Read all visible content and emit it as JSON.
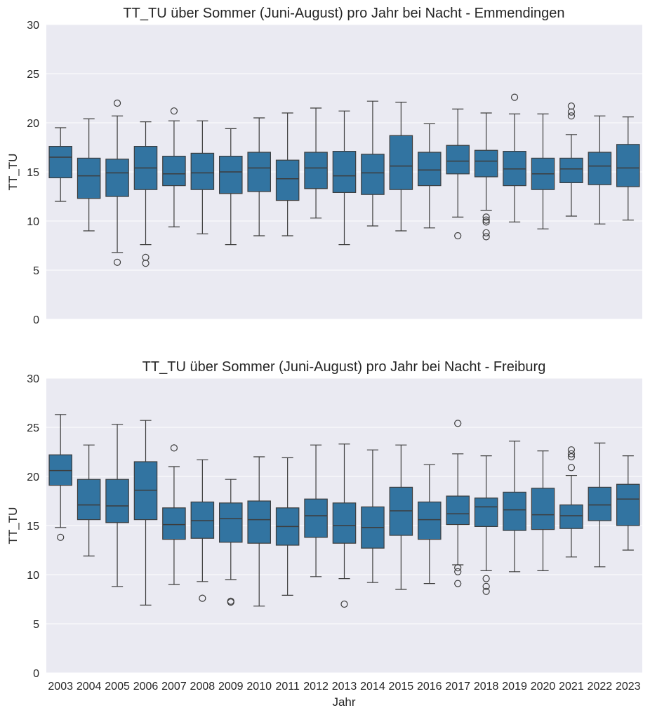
{
  "colors": {
    "panel_bg": "#eaeaf2",
    "grid": "#ffffff",
    "box_fill": "#3274a1",
    "line": "#3d3d3d"
  },
  "chart_data": [
    {
      "type": "box",
      "title": "TT_TU über Sommer  (Juni-August) pro Jahr bei Nacht - Emmendingen",
      "ylabel": "TT_TU",
      "xlabel": "",
      "ylim": [
        0,
        30
      ],
      "yticks": [
        0,
        5,
        10,
        15,
        20,
        25,
        30
      ],
      "grid": true,
      "categories": [
        "2003",
        "2004",
        "2005",
        "2006",
        "2007",
        "2008",
        "2009",
        "2010",
        "2011",
        "2012",
        "2013",
        "2014",
        "2015",
        "2016",
        "2017",
        "2018",
        "2019",
        "2020",
        "2021",
        "2022",
        "2023"
      ],
      "boxes": [
        {
          "year": "2003",
          "whisker_low": 12.0,
          "q1": 14.4,
          "median": 16.5,
          "q3": 17.6,
          "whisker_high": 19.5,
          "outliers": []
        },
        {
          "year": "2004",
          "whisker_low": 9.0,
          "q1": 12.3,
          "median": 14.6,
          "q3": 16.4,
          "whisker_high": 20.4,
          "outliers": []
        },
        {
          "year": "2005",
          "whisker_low": 6.8,
          "q1": 12.5,
          "median": 14.9,
          "q3": 16.3,
          "whisker_high": 20.7,
          "outliers": [
            5.8,
            22.0
          ]
        },
        {
          "year": "2006",
          "whisker_low": 7.6,
          "q1": 13.2,
          "median": 15.4,
          "q3": 17.6,
          "whisker_high": 20.1,
          "outliers": [
            6.3,
            5.7
          ]
        },
        {
          "year": "2007",
          "whisker_low": 9.4,
          "q1": 13.6,
          "median": 14.8,
          "q3": 16.6,
          "whisker_high": 20.2,
          "outliers": [
            21.2
          ]
        },
        {
          "year": "2008",
          "whisker_low": 8.7,
          "q1": 13.2,
          "median": 14.9,
          "q3": 16.9,
          "whisker_high": 20.2,
          "outliers": []
        },
        {
          "year": "2009",
          "whisker_low": 7.6,
          "q1": 12.8,
          "median": 15.0,
          "q3": 16.6,
          "whisker_high": 19.4,
          "outliers": []
        },
        {
          "year": "2010",
          "whisker_low": 8.5,
          "q1": 13.0,
          "median": 15.4,
          "q3": 17.0,
          "whisker_high": 20.5,
          "outliers": []
        },
        {
          "year": "2011",
          "whisker_low": 8.5,
          "q1": 12.1,
          "median": 14.3,
          "q3": 16.2,
          "whisker_high": 21.0,
          "outliers": []
        },
        {
          "year": "2012",
          "whisker_low": 10.3,
          "q1": 13.3,
          "median": 15.4,
          "q3": 17.0,
          "whisker_high": 21.5,
          "outliers": []
        },
        {
          "year": "2013",
          "whisker_low": 7.6,
          "q1": 12.9,
          "median": 14.6,
          "q3": 17.1,
          "whisker_high": 21.2,
          "outliers": []
        },
        {
          "year": "2014",
          "whisker_low": 9.5,
          "q1": 12.7,
          "median": 14.9,
          "q3": 16.8,
          "whisker_high": 22.2,
          "outliers": []
        },
        {
          "year": "2015",
          "whisker_low": 9.0,
          "q1": 13.2,
          "median": 15.6,
          "q3": 18.7,
          "whisker_high": 22.1,
          "outliers": []
        },
        {
          "year": "2016",
          "whisker_low": 9.3,
          "q1": 13.6,
          "median": 15.2,
          "q3": 17.0,
          "whisker_high": 19.9,
          "outliers": []
        },
        {
          "year": "2017",
          "whisker_low": 10.4,
          "q1": 14.8,
          "median": 16.1,
          "q3": 17.7,
          "whisker_high": 21.4,
          "outliers": [
            8.5
          ]
        },
        {
          "year": "2018",
          "whisker_low": 11.1,
          "q1": 14.5,
          "median": 16.1,
          "q3": 17.2,
          "whisker_high": 21.0,
          "outliers": [
            10.4,
            10.1,
            9.9,
            8.8,
            8.4
          ]
        },
        {
          "year": "2019",
          "whisker_low": 9.9,
          "q1": 13.6,
          "median": 15.3,
          "q3": 17.1,
          "whisker_high": 20.9,
          "outliers": [
            22.6
          ]
        },
        {
          "year": "2020",
          "whisker_low": 9.2,
          "q1": 13.2,
          "median": 14.8,
          "q3": 16.4,
          "whisker_high": 20.9,
          "outliers": []
        },
        {
          "year": "2021",
          "whisker_low": 10.5,
          "q1": 13.9,
          "median": 15.3,
          "q3": 16.4,
          "whisker_high": 18.8,
          "outliers": [
            21.7,
            21.1,
            20.7
          ]
        },
        {
          "year": "2022",
          "whisker_low": 9.7,
          "q1": 13.7,
          "median": 15.6,
          "q3": 17.0,
          "whisker_high": 20.7,
          "outliers": []
        },
        {
          "year": "2023",
          "whisker_low": 10.1,
          "q1": 13.5,
          "median": 15.4,
          "q3": 17.8,
          "whisker_high": 20.6,
          "outliers": []
        }
      ]
    },
    {
      "type": "box",
      "title": "TT_TU über Sommer (Juni-August) pro Jahr bei Nacht - Freiburg",
      "ylabel": "TT_TU",
      "xlabel": "Jahr",
      "ylim": [
        0,
        30
      ],
      "yticks": [
        0,
        5,
        10,
        15,
        20,
        25,
        30
      ],
      "grid": true,
      "categories": [
        "2003",
        "2004",
        "2005",
        "2006",
        "2007",
        "2008",
        "2009",
        "2010",
        "2011",
        "2012",
        "2013",
        "2014",
        "2015",
        "2016",
        "2017",
        "2018",
        "2019",
        "2020",
        "2021",
        "2022",
        "2023"
      ],
      "boxes": [
        {
          "year": "2003",
          "whisker_low": 14.8,
          "q1": 19.1,
          "median": 20.6,
          "q3": 22.2,
          "whisker_high": 26.3,
          "outliers": [
            13.8
          ]
        },
        {
          "year": "2004",
          "whisker_low": 11.9,
          "q1": 15.6,
          "median": 17.1,
          "q3": 19.7,
          "whisker_high": 23.2,
          "outliers": []
        },
        {
          "year": "2005",
          "whisker_low": 8.8,
          "q1": 15.3,
          "median": 17.0,
          "q3": 19.7,
          "whisker_high": 25.3,
          "outliers": []
        },
        {
          "year": "2006",
          "whisker_low": 6.9,
          "q1": 15.6,
          "median": 18.6,
          "q3": 21.5,
          "whisker_high": 25.7,
          "outliers": []
        },
        {
          "year": "2007",
          "whisker_low": 9.0,
          "q1": 13.6,
          "median": 15.1,
          "q3": 16.8,
          "whisker_high": 21.0,
          "outliers": [
            22.9
          ]
        },
        {
          "year": "2008",
          "whisker_low": 9.3,
          "q1": 13.7,
          "median": 15.5,
          "q3": 17.4,
          "whisker_high": 21.7,
          "outliers": [
            7.6
          ]
        },
        {
          "year": "2009",
          "whisker_low": 9.5,
          "q1": 13.3,
          "median": 15.7,
          "q3": 17.3,
          "whisker_high": 19.7,
          "outliers": [
            7.3,
            7.2
          ]
        },
        {
          "year": "2010",
          "whisker_low": 6.8,
          "q1": 13.2,
          "median": 15.6,
          "q3": 17.5,
          "whisker_high": 22.0,
          "outliers": []
        },
        {
          "year": "2011",
          "whisker_low": 7.9,
          "q1": 13.0,
          "median": 14.9,
          "q3": 16.8,
          "whisker_high": 21.9,
          "outliers": []
        },
        {
          "year": "2012",
          "whisker_low": 9.8,
          "q1": 13.8,
          "median": 16.0,
          "q3": 17.7,
          "whisker_high": 23.2,
          "outliers": []
        },
        {
          "year": "2013",
          "whisker_low": 9.6,
          "q1": 13.2,
          "median": 15.0,
          "q3": 17.3,
          "whisker_high": 23.3,
          "outliers": [
            7.0
          ]
        },
        {
          "year": "2014",
          "whisker_low": 9.2,
          "q1": 12.7,
          "median": 14.8,
          "q3": 16.9,
          "whisker_high": 22.7,
          "outliers": []
        },
        {
          "year": "2015",
          "whisker_low": 8.5,
          "q1": 14.0,
          "median": 16.5,
          "q3": 18.9,
          "whisker_high": 23.2,
          "outliers": []
        },
        {
          "year": "2016",
          "whisker_low": 9.1,
          "q1": 13.6,
          "median": 15.6,
          "q3": 17.4,
          "whisker_high": 21.2,
          "outliers": []
        },
        {
          "year": "2017",
          "whisker_low": 11.0,
          "q1": 15.1,
          "median": 16.2,
          "q3": 18.0,
          "whisker_high": 22.3,
          "outliers": [
            25.4,
            10.7,
            10.3,
            9.1
          ]
        },
        {
          "year": "2018",
          "whisker_low": 10.4,
          "q1": 14.9,
          "median": 16.9,
          "q3": 17.8,
          "whisker_high": 22.1,
          "outliers": [
            9.6,
            8.8,
            8.3
          ]
        },
        {
          "year": "2019",
          "whisker_low": 10.3,
          "q1": 14.5,
          "median": 16.6,
          "q3": 18.4,
          "whisker_high": 23.6,
          "outliers": []
        },
        {
          "year": "2020",
          "whisker_low": 10.4,
          "q1": 14.6,
          "median": 16.1,
          "q3": 18.8,
          "whisker_high": 22.6,
          "outliers": []
        },
        {
          "year": "2021",
          "whisker_low": 11.8,
          "q1": 14.7,
          "median": 16.0,
          "q3": 17.1,
          "whisker_high": 20.1,
          "outliers": [
            22.7,
            22.3,
            22.0,
            20.9
          ]
        },
        {
          "year": "2022",
          "whisker_low": 10.8,
          "q1": 15.5,
          "median": 17.1,
          "q3": 18.9,
          "whisker_high": 23.4,
          "outliers": []
        },
        {
          "year": "2023",
          "whisker_low": 12.5,
          "q1": 15.0,
          "median": 17.7,
          "q3": 19.2,
          "whisker_high": 22.1,
          "outliers": []
        }
      ]
    }
  ]
}
